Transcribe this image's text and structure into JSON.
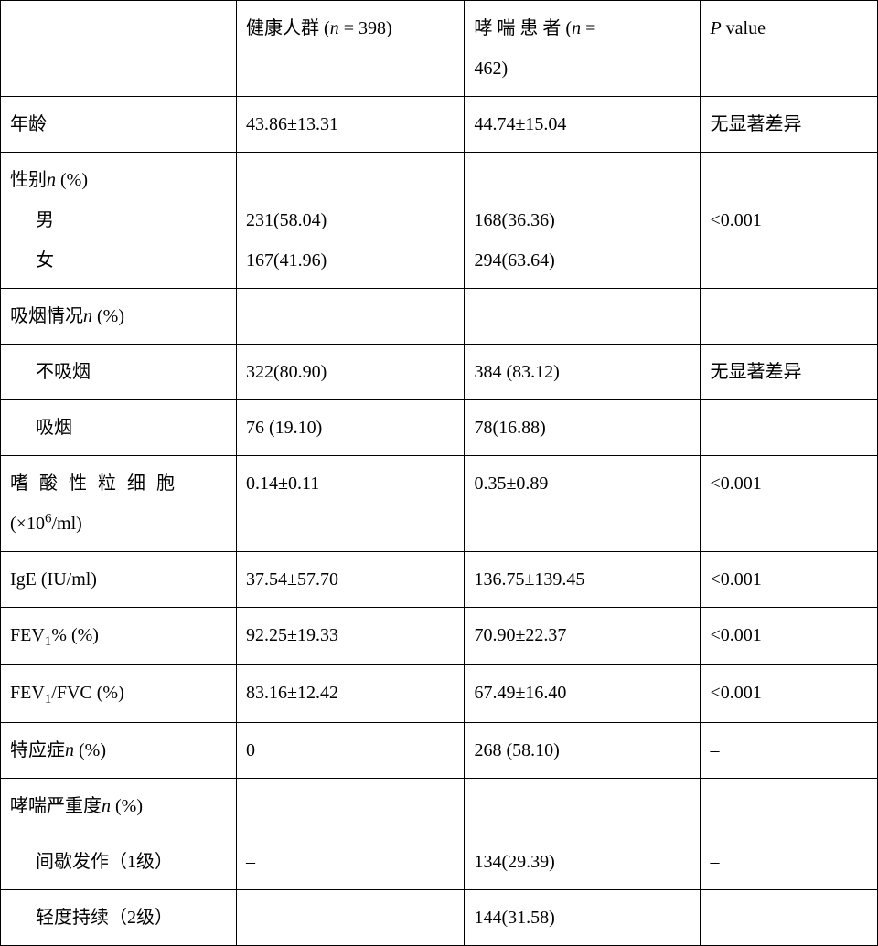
{
  "table": {
    "background_color": "#ffffff",
    "border_color": "#000000",
    "text_color": "#000000",
    "font_size_pt": 15,
    "header": {
      "col0": "",
      "col1_pre": "健康人群 (",
      "col1_n": "n",
      "col1_post": " = 398)",
      "col2_pre_l1": "哮 喘 患 者  (",
      "col2_n": "n",
      "col2_eq": "  =",
      "col2_l2": "462)",
      "col3_p": "P",
      "col3_rest": " value"
    },
    "rows": {
      "age": {
        "label": "年龄",
        "c1": "43.86±13.31",
        "c2": "44.74±15.04",
        "p": "无显著差异"
      },
      "sex": {
        "label_pre": "性别",
        "label_n": "n",
        "label_post": " (%)",
        "male": "男",
        "female": "女",
        "c1_m": "231(58.04)",
        "c1_f": "167(41.96)",
        "c2_m": "168(36.36)",
        "c2_f": "294(63.64)",
        "p": "<0.001"
      },
      "smoke": {
        "label_pre": "吸烟情况",
        "label_n": "n",
        "label_post": " (%)",
        "no_label": "不吸烟",
        "yes_label": "吸烟",
        "no_c1": "322(80.90)",
        "no_c2": "384 (83.12)",
        "no_p": "无显著差异",
        "yes_c1": "76 (19.10)",
        "yes_c2": "78(16.88)",
        "yes_p": ""
      },
      "eos": {
        "label_l1": "嗜酸性粒细胞",
        "label_l2_pre": "(×10",
        "label_l2_sup": "6",
        "label_l2_post": "/ml)",
        "c1": "0.14±0.11",
        "c2": "0.35±0.89",
        "p": "<0.001"
      },
      "ige": {
        "label": "IgE (IU/ml)",
        "c1": "37.54±57.70",
        "c2": "136.75±139.45",
        "p": "<0.001"
      },
      "fev1p": {
        "label_pre": "FEV",
        "label_sub": "1",
        "label_post": "% (%)",
        "c1": "92.25±19.33",
        "c2": "70.90±22.37",
        "p": "<0.001"
      },
      "fev1fvc": {
        "label_pre": "FEV",
        "label_sub": "1",
        "label_post": "/FVC (%)",
        "c1": "83.16±12.42",
        "c2": "67.49±16.40",
        "p": "<0.001"
      },
      "atopy": {
        "label_pre": "特应症",
        "label_n": "n",
        "label_post": " (%)",
        "c1": "0",
        "c2": "268 (58.10)",
        "p": "–"
      },
      "severity": {
        "label_pre": "哮喘严重度",
        "label_n": "n",
        "label_post": " (%)",
        "l1_label": "间歇发作（1级）",
        "l1_c1": "–",
        "l1_c2": "134(29.39)",
        "l1_p": "–",
        "l2_label": "轻度持续（2级）",
        "l2_c1": "–",
        "l2_c2": "144(31.58)",
        "l2_p": "–"
      }
    }
  }
}
